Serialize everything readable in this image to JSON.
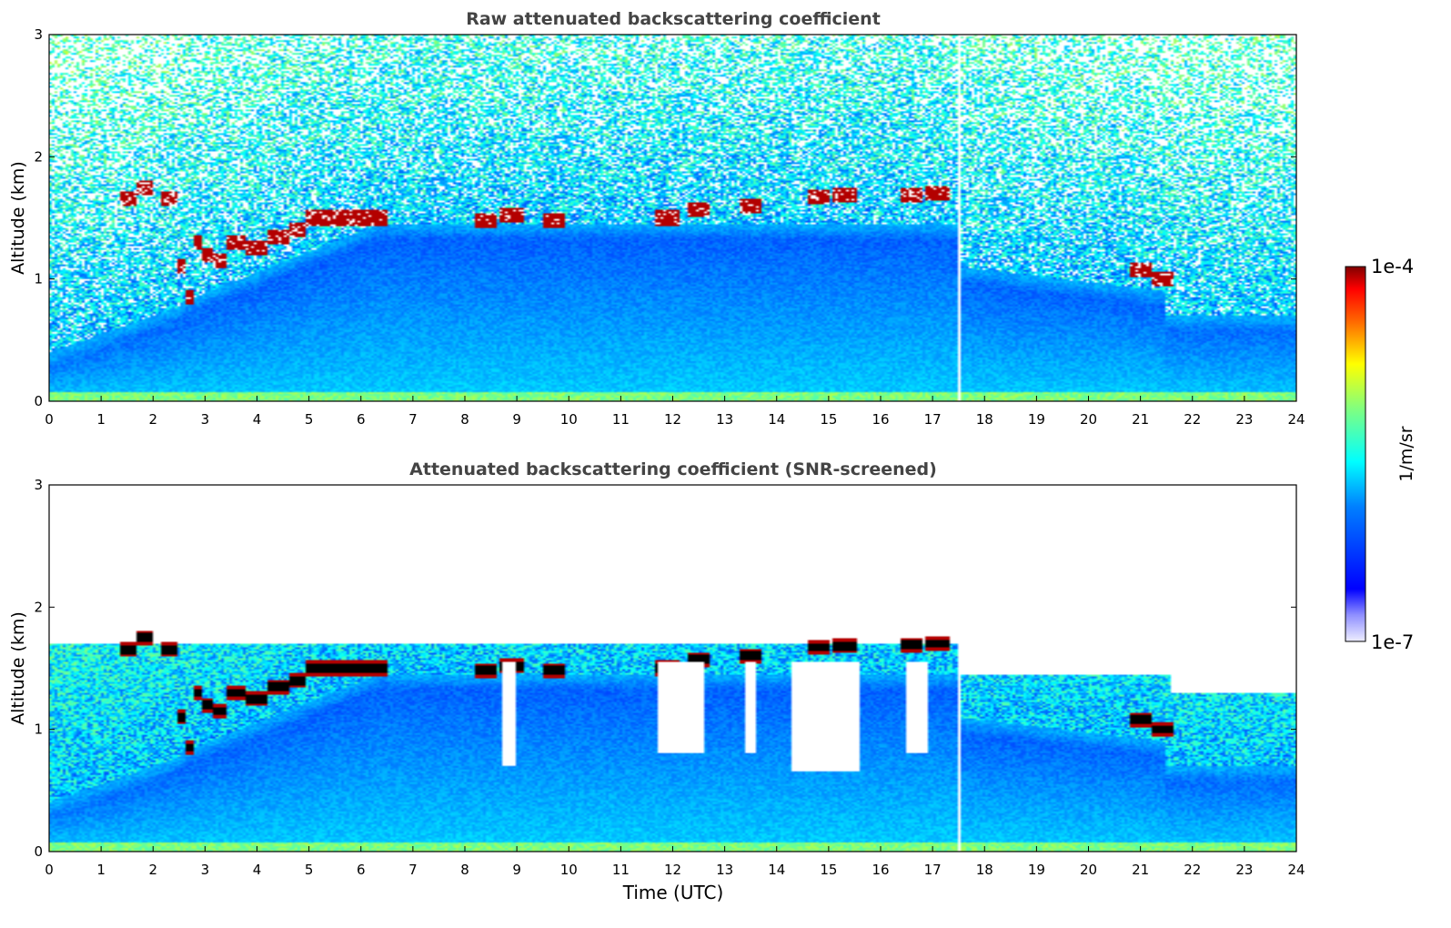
{
  "chart_data": [
    {
      "type": "heatmap",
      "title": "Raw attenuated backscattering coefficient",
      "xlabel": "",
      "ylabel": "Altitude (km)",
      "xlim": [
        0,
        24
      ],
      "ylim": [
        0,
        3
      ],
      "x_ticks": [
        "0",
        "1",
        "2",
        "3",
        "4",
        "5",
        "6",
        "7",
        "8",
        "9",
        "10",
        "11",
        "12",
        "13",
        "14",
        "15",
        "16",
        "17",
        "18",
        "19",
        "20",
        "21",
        "22",
        "23",
        "24"
      ],
      "y_ticks": [
        "0",
        "1",
        "2",
        "3"
      ],
      "screened": false,
      "colormap": "jet",
      "cloud_base_km": [
        {
          "t": 1.6,
          "z": 1.65
        },
        {
          "t": 1.75,
          "z": 1.75
        },
        {
          "t": 2.35,
          "z": 1.65
        },
        {
          "t": 2.55,
          "z": 1.1
        },
        {
          "t": 2.7,
          "z": 0.85
        },
        {
          "t": 2.85,
          "z": 1.3
        },
        {
          "t": 3.05,
          "z": 1.2
        },
        {
          "t": 3.25,
          "z": 1.15
        },
        {
          "t": 3.6,
          "z": 1.3
        },
        {
          "t": 4.0,
          "z": 1.25
        },
        {
          "t": 4.4,
          "z": 1.35
        },
        {
          "t": 4.8,
          "z": 1.4
        },
        {
          "t": 5.1,
          "z": 1.5
        },
        {
          "t": 5.5,
          "z": 1.5
        },
        {
          "t": 5.9,
          "z": 1.5
        },
        {
          "t": 6.3,
          "z": 1.5
        },
        {
          "t": 8.4,
          "z": 1.48
        },
        {
          "t": 8.9,
          "z": 1.52
        },
        {
          "t": 9.7,
          "z": 1.48
        },
        {
          "t": 11.9,
          "z": 1.5
        },
        {
          "t": 12.5,
          "z": 1.57
        },
        {
          "t": 13.5,
          "z": 1.6
        },
        {
          "t": 14.8,
          "z": 1.67
        },
        {
          "t": 15.3,
          "z": 1.68
        },
        {
          "t": 16.6,
          "z": 1.69
        },
        {
          "t": 17.1,
          "z": 1.7
        },
        {
          "t": 21.0,
          "z": 1.08
        },
        {
          "t": 21.4,
          "z": 1.0
        }
      ]
    },
    {
      "type": "heatmap",
      "title": "Attenuated backscattering coefficient (SNR-screened)",
      "xlabel": "Time (UTC)",
      "ylabel": "Altitude (km)",
      "xlim": [
        0,
        24
      ],
      "ylim": [
        0,
        3
      ],
      "x_ticks": [
        "0",
        "1",
        "2",
        "3",
        "4",
        "5",
        "6",
        "7",
        "8",
        "9",
        "10",
        "11",
        "12",
        "13",
        "14",
        "15",
        "16",
        "17",
        "18",
        "19",
        "20",
        "21",
        "22",
        "23",
        "24"
      ],
      "y_ticks": [
        "0",
        "1",
        "2",
        "3"
      ],
      "screened": true,
      "colormap": "jet",
      "cloud_base_km": [
        {
          "t": 1.6,
          "z": 1.65
        },
        {
          "t": 1.75,
          "z": 1.75
        },
        {
          "t": 2.35,
          "z": 1.65
        },
        {
          "t": 2.55,
          "z": 1.1
        },
        {
          "t": 2.7,
          "z": 0.85
        },
        {
          "t": 2.85,
          "z": 1.3
        },
        {
          "t": 3.05,
          "z": 1.2
        },
        {
          "t": 3.25,
          "z": 1.15
        },
        {
          "t": 3.6,
          "z": 1.3
        },
        {
          "t": 4.0,
          "z": 1.25
        },
        {
          "t": 4.4,
          "z": 1.35
        },
        {
          "t": 4.8,
          "z": 1.4
        },
        {
          "t": 5.1,
          "z": 1.5
        },
        {
          "t": 5.5,
          "z": 1.5
        },
        {
          "t": 5.9,
          "z": 1.5
        },
        {
          "t": 6.3,
          "z": 1.5
        },
        {
          "t": 8.4,
          "z": 1.48
        },
        {
          "t": 8.9,
          "z": 1.52
        },
        {
          "t": 9.7,
          "z": 1.48
        },
        {
          "t": 11.9,
          "z": 1.5
        },
        {
          "t": 12.5,
          "z": 1.57
        },
        {
          "t": 13.5,
          "z": 1.6
        },
        {
          "t": 14.8,
          "z": 1.67
        },
        {
          "t": 15.3,
          "z": 1.68
        },
        {
          "t": 16.6,
          "z": 1.69
        },
        {
          "t": 17.1,
          "z": 1.7
        },
        {
          "t": 21.0,
          "z": 1.08
        },
        {
          "t": 21.4,
          "z": 1.0
        }
      ],
      "cleared_gaps": [
        {
          "t0": 8.7,
          "t1": 9.0,
          "z_bottom": 0.7
        },
        {
          "t0": 11.7,
          "t1": 12.6,
          "z_bottom": 0.8
        },
        {
          "t0": 13.4,
          "t1": 13.6,
          "z_bottom": 0.8
        },
        {
          "t0": 14.3,
          "t1": 15.6,
          "z_bottom": 0.65
        },
        {
          "t0": 16.5,
          "t1": 16.9,
          "z_bottom": 0.8
        }
      ]
    }
  ],
  "colorbar": {
    "max_label": "1e-4",
    "min_label": "1e-7",
    "label": "1/m/sr",
    "vmin": 1e-07,
    "vmax": 0.0001,
    "scale": "log"
  },
  "colors": {
    "jet_dark_red": "#800000",
    "jet_blue": "#0000ff",
    "cloud_core_screened": "#000000",
    "title_gray": "#444444"
  }
}
